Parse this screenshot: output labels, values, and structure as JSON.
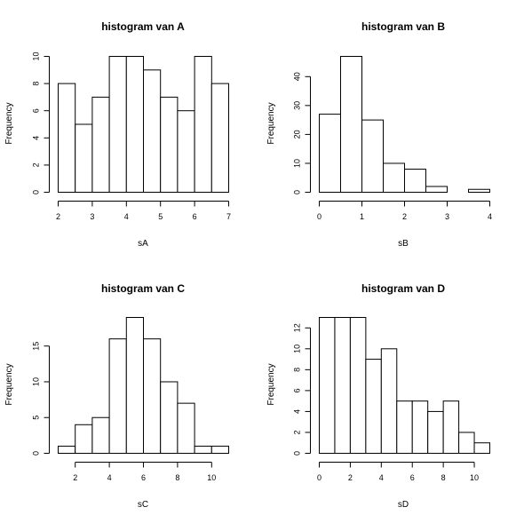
{
  "chart_data": [
    {
      "type": "bar",
      "title": "histogram van A",
      "xlabel": "sA",
      "ylabel": "Frequency",
      "bins": [
        [
          2,
          2.5
        ],
        [
          2.5,
          3
        ],
        [
          3,
          3.5
        ],
        [
          3.5,
          4
        ],
        [
          4,
          4.5
        ],
        [
          4.5,
          5
        ],
        [
          5,
          5.5
        ],
        [
          5.5,
          6
        ],
        [
          6,
          6.5
        ],
        [
          6.5,
          7
        ]
      ],
      "values": [
        8,
        5,
        7,
        10,
        10,
        9,
        7,
        6,
        10,
        8
      ],
      "xlim": [
        2,
        7
      ],
      "ylim": [
        0,
        10
      ],
      "xticks": [
        2,
        3,
        4,
        5,
        6,
        7
      ],
      "yticks": [
        0,
        2,
        4,
        6,
        8,
        10
      ],
      "xtick_labels": [
        "2",
        "3",
        "4",
        "5",
        "6",
        "7"
      ],
      "ytick_labels": [
        "0",
        "2",
        "4",
        "6",
        "8",
        "10"
      ]
    },
    {
      "type": "bar",
      "title": "histogram van B",
      "xlabel": "sB",
      "ylabel": "Frequency",
      "bins": [
        [
          0,
          0.5
        ],
        [
          0.5,
          1
        ],
        [
          1,
          1.5
        ],
        [
          1.5,
          2
        ],
        [
          2,
          2.5
        ],
        [
          2.5,
          3
        ],
        [
          3,
          3.5
        ],
        [
          3.5,
          4
        ]
      ],
      "values": [
        27,
        47,
        25,
        10,
        8,
        2,
        0,
        1
      ],
      "xlim": [
        0,
        4
      ],
      "ylim": [
        0,
        47
      ],
      "xticks": [
        0,
        1,
        2,
        3,
        4
      ],
      "yticks": [
        0,
        10,
        20,
        30,
        40
      ],
      "xtick_labels": [
        "0",
        "1",
        "2",
        "3",
        "4"
      ],
      "ytick_labels": [
        "0",
        "10",
        "20",
        "30",
        "40"
      ]
    },
    {
      "type": "bar",
      "title": "histogram van C",
      "xlabel": "sC",
      "ylabel": "Frequency",
      "bins": [
        [
          1,
          2
        ],
        [
          2,
          3
        ],
        [
          3,
          4
        ],
        [
          4,
          5
        ],
        [
          5,
          6
        ],
        [
          6,
          7
        ],
        [
          7,
          8
        ],
        [
          8,
          9
        ],
        [
          9,
          10
        ],
        [
          10,
          11
        ]
      ],
      "values": [
        1,
        4,
        5,
        16,
        19,
        16,
        10,
        7,
        1,
        1
      ],
      "xlim": [
        1,
        11
      ],
      "ylim": [
        0,
        19
      ],
      "xticks": [
        2,
        4,
        6,
        8,
        10
      ],
      "yticks": [
        0,
        5,
        10,
        15
      ],
      "xtick_labels": [
        "2",
        "4",
        "6",
        "8",
        "10"
      ],
      "ytick_labels": [
        "0",
        "5",
        "10",
        "15"
      ]
    },
    {
      "type": "bar",
      "title": "histogram van D",
      "xlabel": "sD",
      "ylabel": "Frequency",
      "bins": [
        [
          0,
          1
        ],
        [
          1,
          2
        ],
        [
          2,
          3
        ],
        [
          3,
          4
        ],
        [
          4,
          5
        ],
        [
          5,
          6
        ],
        [
          6,
          7
        ],
        [
          7,
          8
        ],
        [
          8,
          9
        ],
        [
          9,
          10
        ],
        [
          10,
          11
        ]
      ],
      "values": [
        13,
        13,
        13,
        9,
        10,
        5,
        5,
        4,
        5,
        2,
        1
      ],
      "xlim": [
        0,
        11
      ],
      "ylim": [
        0,
        13
      ],
      "xticks": [
        0,
        2,
        4,
        6,
        8,
        10
      ],
      "yticks": [
        0,
        2,
        4,
        6,
        8,
        10,
        12
      ],
      "xtick_labels": [
        "0",
        "2",
        "4",
        "6",
        "8",
        "10"
      ],
      "ytick_labels": [
        "0",
        "2",
        "4",
        "6",
        "8",
        "10",
        "12"
      ]
    }
  ]
}
